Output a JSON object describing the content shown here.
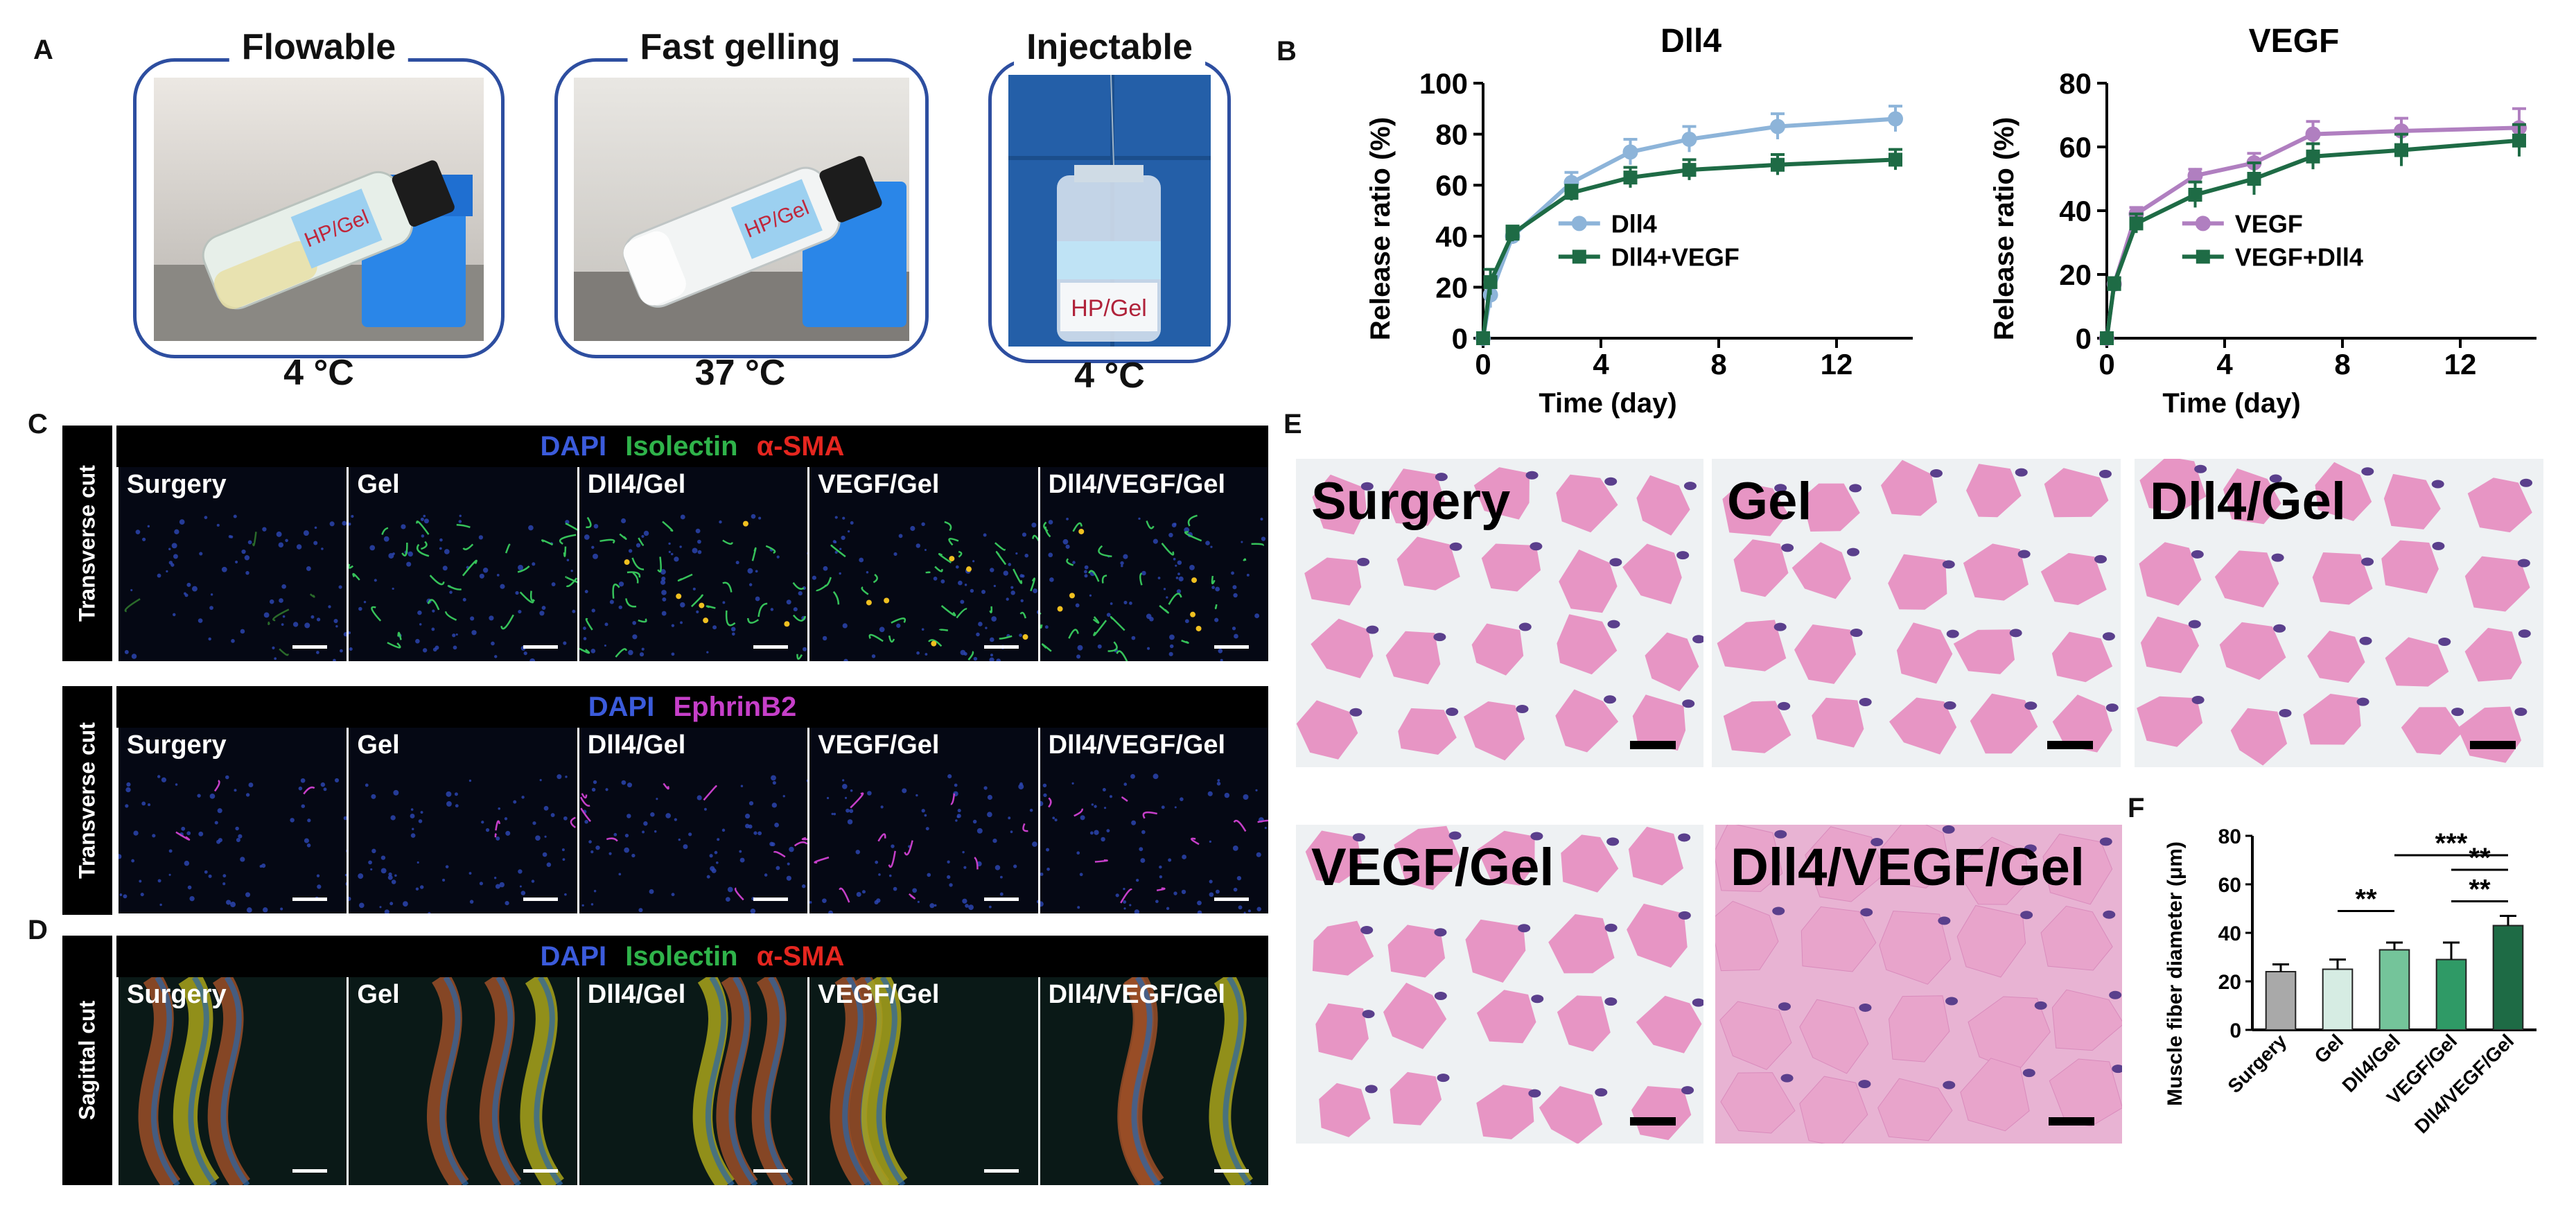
{
  "panel_labels": {
    "a": "A",
    "b": "B",
    "c": "C",
    "d": "D",
    "e": "E",
    "f": "F"
  },
  "panel_a": {
    "vials": [
      {
        "title": "Flowable",
        "temp": "4 °C",
        "tag": "HP/Gel"
      },
      {
        "title": "Fast gelling",
        "temp": "37 °C",
        "tag": "HP/Gel"
      },
      {
        "title": "Injectable",
        "temp": "4 °C",
        "tag": "HP/Gel"
      }
    ]
  },
  "panel_c": {
    "row1": {
      "side": "Transverse cut",
      "stains": [
        "DAPI",
        "Isolectin",
        "α-SMA"
      ],
      "groups": [
        "Surgery",
        "Gel",
        "Dll4/Gel",
        "VEGF/Gel",
        "Dll4/VEGF/Gel"
      ]
    },
    "row2": {
      "side": "Transverse cut",
      "stains": [
        "DAPI",
        "EphrinB2"
      ],
      "groups": [
        "Surgery",
        "Gel",
        "Dll4/Gel",
        "VEGF/Gel",
        "Dll4/VEGF/Gel"
      ]
    }
  },
  "panel_d": {
    "row": {
      "side": "Sagittal cut",
      "stains": [
        "DAPI",
        "Isolectin",
        "α-SMA"
      ],
      "groups": [
        "Surgery",
        "Gel",
        "Dll4/Gel",
        "VEGF/Gel",
        "Dll4/VEGF/Gel"
      ]
    }
  },
  "panel_e": {
    "images": [
      "Surgery",
      "Gel",
      "Dll4/Gel",
      "VEGF/Gel",
      "Dll4/VEGF/Gel"
    ]
  },
  "colors": {
    "dapi": "#3b5bdb",
    "isolectin": "#2fb34a",
    "sma": "#e5261f",
    "ephrin": "#c63fc9",
    "frame": "#2d4ea0",
    "dll4": "#8db4d9",
    "dll4_vegf": "#1e6b45",
    "vegf": "#b07fc0",
    "vegf_dll4": "#1e6b45"
  },
  "chart_data": [
    {
      "type": "line",
      "title": "Dll4",
      "xlabel": "Time (day)",
      "ylabel": "Release ratio (%)",
      "xlim": [
        0,
        16
      ],
      "ylim": [
        0,
        100
      ],
      "xticks": [
        "0",
        "4",
        "8",
        "12",
        "16"
      ],
      "yticks": [
        "0",
        "20",
        "40",
        "60",
        "80",
        "100"
      ],
      "legend": "center-right",
      "series": [
        {
          "name": "Dll4",
          "x": [
            0,
            0.25,
            1,
            3,
            5,
            7,
            10,
            14
          ],
          "y": [
            0,
            17,
            40,
            61,
            73,
            78,
            83,
            86
          ],
          "err": [
            1,
            5,
            3,
            4,
            5,
            5,
            5,
            5
          ]
        },
        {
          "name": "Dll4+VEGF",
          "x": [
            0,
            0.25,
            1,
            3,
            5,
            7,
            10,
            14
          ],
          "y": [
            0,
            22,
            41,
            57,
            63,
            66,
            68,
            70
          ],
          "err": [
            1,
            5,
            3,
            3,
            4,
            4,
            4,
            4
          ]
        }
      ]
    },
    {
      "type": "line",
      "title": "VEGF",
      "xlabel": "Time (day)",
      "ylabel": "Release ratio (%)",
      "xlim": [
        0,
        16
      ],
      "ylim": [
        0,
        80
      ],
      "xticks": [
        "0",
        "4",
        "8",
        "12",
        "16"
      ],
      "yticks": [
        "0",
        "20",
        "40",
        "60",
        "80"
      ],
      "legend": "center-right",
      "series": [
        {
          "name": "VEGF",
          "x": [
            0,
            0.25,
            1,
            3,
            5,
            7,
            10,
            14
          ],
          "y": [
            0,
            17,
            39,
            51,
            55,
            64,
            65,
            66
          ],
          "err": [
            1,
            2,
            2,
            2,
            3,
            4,
            4,
            6
          ]
        },
        {
          "name": "VEGF+Dll4",
          "x": [
            0,
            0.25,
            1,
            3,
            5,
            7,
            10,
            14
          ],
          "y": [
            0,
            17,
            36,
            45,
            50,
            57,
            59,
            62
          ],
          "err": [
            1,
            2,
            3,
            4,
            5,
            4,
            5,
            5
          ]
        }
      ]
    },
    {
      "type": "bar",
      "ylabel": "Muscle fiber diameter (μm)",
      "ylim": [
        0,
        80
      ],
      "yticks": [
        "0",
        "20",
        "40",
        "60",
        "80"
      ],
      "categories": [
        "Surgery",
        "Gel",
        "Dll4/Gel",
        "VEGF/Gel",
        "Dll4/VEGF/Gel"
      ],
      "values": [
        24,
        25,
        33,
        29,
        43
      ],
      "err": [
        3,
        4,
        3,
        7,
        4
      ],
      "bar_colors": [
        "#a9a9a9",
        "#d6ece3",
        "#74c49a",
        "#2f9a66",
        "#1e6b45"
      ],
      "significance": [
        {
          "from": 2,
          "to": 4,
          "label": "***"
        },
        {
          "from": 3,
          "to": 4,
          "label": "**"
        },
        {
          "from": 1,
          "to": 2,
          "label": "**"
        },
        {
          "from": 3,
          "to": 4,
          "label": "**"
        }
      ]
    }
  ]
}
